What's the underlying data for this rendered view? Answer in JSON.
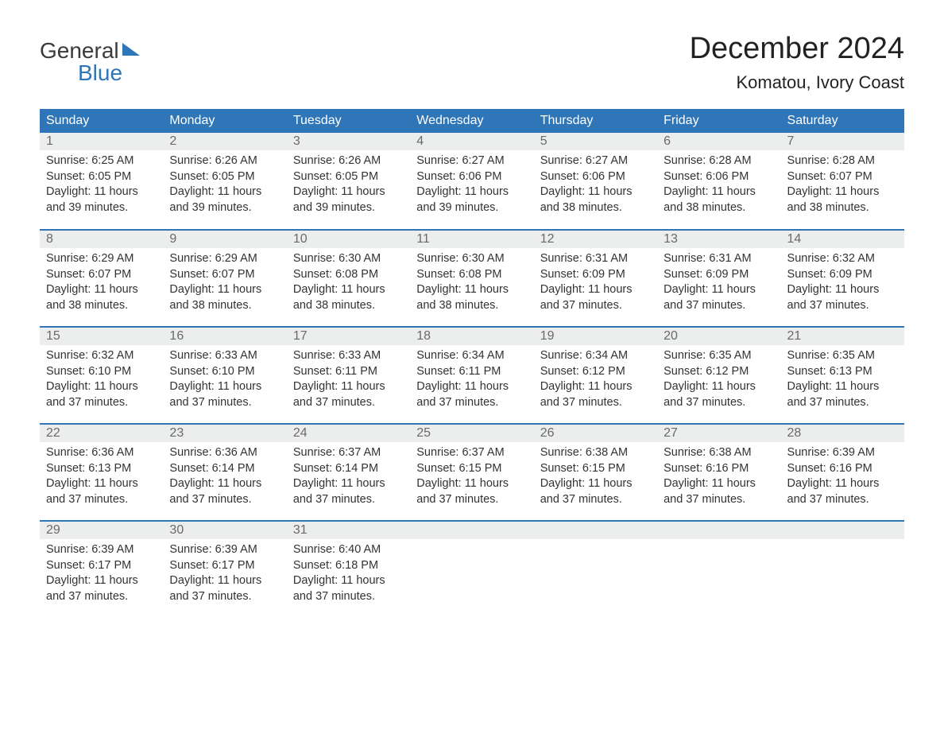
{
  "brand": {
    "line1": "General",
    "line2": "Blue",
    "accent_color": "#2f76b8"
  },
  "title": "December 2024",
  "location": "Komatou, Ivory Coast",
  "colors": {
    "header_bg": "#2f76b8",
    "header_text": "#ffffff",
    "daynum_bg": "#eceded",
    "daynum_text": "#6a6a6a",
    "body_text": "#333333",
    "page_bg": "#ffffff"
  },
  "weekdays": [
    "Sunday",
    "Monday",
    "Tuesday",
    "Wednesday",
    "Thursday",
    "Friday",
    "Saturday"
  ],
  "labels": {
    "sunrise": "Sunrise",
    "sunset": "Sunset",
    "daylight": "Daylight"
  },
  "weeks": [
    [
      {
        "day": "1",
        "sunrise": "6:25 AM",
        "sunset": "6:05 PM",
        "daylight": "11 hours and 39 minutes."
      },
      {
        "day": "2",
        "sunrise": "6:26 AM",
        "sunset": "6:05 PM",
        "daylight": "11 hours and 39 minutes."
      },
      {
        "day": "3",
        "sunrise": "6:26 AM",
        "sunset": "6:05 PM",
        "daylight": "11 hours and 39 minutes."
      },
      {
        "day": "4",
        "sunrise": "6:27 AM",
        "sunset": "6:06 PM",
        "daylight": "11 hours and 39 minutes."
      },
      {
        "day": "5",
        "sunrise": "6:27 AM",
        "sunset": "6:06 PM",
        "daylight": "11 hours and 38 minutes."
      },
      {
        "day": "6",
        "sunrise": "6:28 AM",
        "sunset": "6:06 PM",
        "daylight": "11 hours and 38 minutes."
      },
      {
        "day": "7",
        "sunrise": "6:28 AM",
        "sunset": "6:07 PM",
        "daylight": "11 hours and 38 minutes."
      }
    ],
    [
      {
        "day": "8",
        "sunrise": "6:29 AM",
        "sunset": "6:07 PM",
        "daylight": "11 hours and 38 minutes."
      },
      {
        "day": "9",
        "sunrise": "6:29 AM",
        "sunset": "6:07 PM",
        "daylight": "11 hours and 38 minutes."
      },
      {
        "day": "10",
        "sunrise": "6:30 AM",
        "sunset": "6:08 PM",
        "daylight": "11 hours and 38 minutes."
      },
      {
        "day": "11",
        "sunrise": "6:30 AM",
        "sunset": "6:08 PM",
        "daylight": "11 hours and 38 minutes."
      },
      {
        "day": "12",
        "sunrise": "6:31 AM",
        "sunset": "6:09 PM",
        "daylight": "11 hours and 37 minutes."
      },
      {
        "day": "13",
        "sunrise": "6:31 AM",
        "sunset": "6:09 PM",
        "daylight": "11 hours and 37 minutes."
      },
      {
        "day": "14",
        "sunrise": "6:32 AM",
        "sunset": "6:09 PM",
        "daylight": "11 hours and 37 minutes."
      }
    ],
    [
      {
        "day": "15",
        "sunrise": "6:32 AM",
        "sunset": "6:10 PM",
        "daylight": "11 hours and 37 minutes."
      },
      {
        "day": "16",
        "sunrise": "6:33 AM",
        "sunset": "6:10 PM",
        "daylight": "11 hours and 37 minutes."
      },
      {
        "day": "17",
        "sunrise": "6:33 AM",
        "sunset": "6:11 PM",
        "daylight": "11 hours and 37 minutes."
      },
      {
        "day": "18",
        "sunrise": "6:34 AM",
        "sunset": "6:11 PM",
        "daylight": "11 hours and 37 minutes."
      },
      {
        "day": "19",
        "sunrise": "6:34 AM",
        "sunset": "6:12 PM",
        "daylight": "11 hours and 37 minutes."
      },
      {
        "day": "20",
        "sunrise": "6:35 AM",
        "sunset": "6:12 PM",
        "daylight": "11 hours and 37 minutes."
      },
      {
        "day": "21",
        "sunrise": "6:35 AM",
        "sunset": "6:13 PM",
        "daylight": "11 hours and 37 minutes."
      }
    ],
    [
      {
        "day": "22",
        "sunrise": "6:36 AM",
        "sunset": "6:13 PM",
        "daylight": "11 hours and 37 minutes."
      },
      {
        "day": "23",
        "sunrise": "6:36 AM",
        "sunset": "6:14 PM",
        "daylight": "11 hours and 37 minutes."
      },
      {
        "day": "24",
        "sunrise": "6:37 AM",
        "sunset": "6:14 PM",
        "daylight": "11 hours and 37 minutes."
      },
      {
        "day": "25",
        "sunrise": "6:37 AM",
        "sunset": "6:15 PM",
        "daylight": "11 hours and 37 minutes."
      },
      {
        "day": "26",
        "sunrise": "6:38 AM",
        "sunset": "6:15 PM",
        "daylight": "11 hours and 37 minutes."
      },
      {
        "day": "27",
        "sunrise": "6:38 AM",
        "sunset": "6:16 PM",
        "daylight": "11 hours and 37 minutes."
      },
      {
        "day": "28",
        "sunrise": "6:39 AM",
        "sunset": "6:16 PM",
        "daylight": "11 hours and 37 minutes."
      }
    ],
    [
      {
        "day": "29",
        "sunrise": "6:39 AM",
        "sunset": "6:17 PM",
        "daylight": "11 hours and 37 minutes."
      },
      {
        "day": "30",
        "sunrise": "6:39 AM",
        "sunset": "6:17 PM",
        "daylight": "11 hours and 37 minutes."
      },
      {
        "day": "31",
        "sunrise": "6:40 AM",
        "sunset": "6:18 PM",
        "daylight": "11 hours and 37 minutes."
      },
      null,
      null,
      null,
      null
    ]
  ]
}
